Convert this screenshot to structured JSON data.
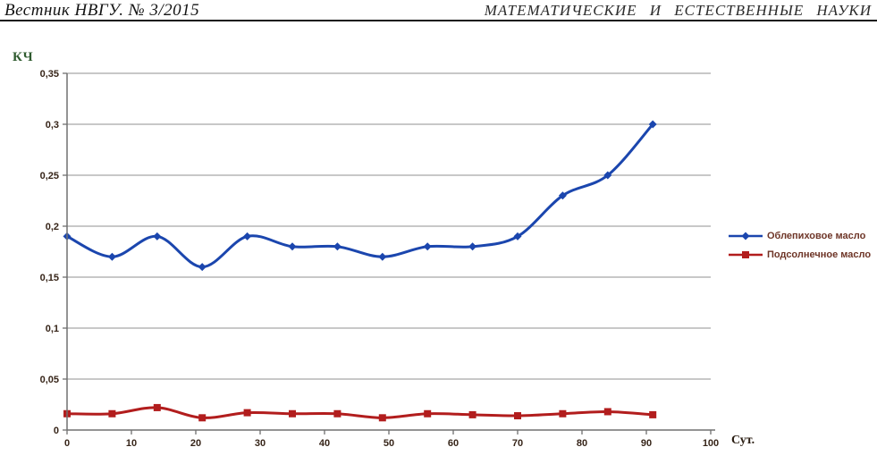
{
  "header": {
    "left": "Вестник НВГУ. № 3/2015",
    "right": "МАТЕМАТИЧЕСКИЕ И ЕСТЕСТВЕННЫЕ НАУКИ"
  },
  "chart_data": {
    "type": "line",
    "title": "",
    "ylabel": "КЧ",
    "xlabel": "Сут.",
    "x": [
      0,
      7,
      14,
      21,
      28,
      35,
      42,
      49,
      56,
      63,
      70,
      77,
      84,
      91
    ],
    "series": [
      {
        "name": "Облепиховое масло",
        "color": "#1B46AE",
        "marker": "diamond",
        "values": [
          0.19,
          0.17,
          0.19,
          0.16,
          0.19,
          0.18,
          0.18,
          0.17,
          0.18,
          0.18,
          0.19,
          0.23,
          0.25,
          0.3
        ]
      },
      {
        "name": "Подсолнечное масло",
        "color": "#B21D1D",
        "marker": "square",
        "values": [
          0.016,
          0.016,
          0.022,
          0.012,
          0.017,
          0.016,
          0.016,
          0.012,
          0.016,
          0.015,
          0.014,
          0.016,
          0.018,
          0.015
        ]
      }
    ],
    "xlim": [
      0,
      100
    ],
    "ylim": [
      0,
      0.35
    ],
    "grid": true,
    "legend_position": "right",
    "yticks": {
      "values": [
        0,
        0.05,
        0.1,
        0.15,
        0.2,
        0.25,
        0.3,
        0.35
      ],
      "labels": [
        "0",
        "0,05",
        "0,1",
        "0,15",
        "0,2",
        "0,25",
        "0,3",
        "0,35"
      ]
    },
    "xticks": {
      "values": [
        0,
        10,
        20,
        30,
        40,
        50,
        60,
        70,
        80,
        90,
        100
      ],
      "labels": [
        "0",
        "10",
        "20",
        "30",
        "40",
        "50",
        "60",
        "70",
        "80",
        "90",
        "100"
      ]
    }
  }
}
